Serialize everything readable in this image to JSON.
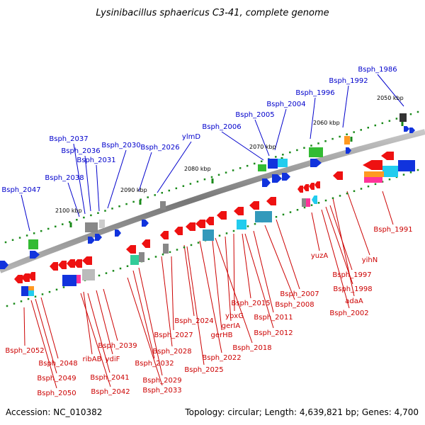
{
  "title": "Lysinibacillus sphaericus C3-41, complete genome",
  "footer": {
    "accession": "Accession: NC_010382",
    "topology": "Topology: circular; Length: 4,639,821 bp; Genes: 4,700"
  },
  "colors": {
    "label_top": "#0000cc",
    "label_bottom": "#cc0000",
    "backbone": "#8c8c8c",
    "tick": "#1a8a1a"
  },
  "scale_labels": [
    "2050 kbp",
    "2060 kbp",
    "2070 kbp",
    "2080 kbp",
    "2090 kbp",
    "2100 kbp"
  ],
  "genes_top": [
    "Bsph_1986",
    "Bsph_1992",
    "Bsph_1996",
    "Bsph_2004",
    "Bsph_2005",
    "Bsph_2006",
    "ylmD",
    "Bsph_2026",
    "Bsph_2030",
    "Bsph_2031",
    "Bsph_2036",
    "Bsph_2037",
    "Bsph_2038",
    "Bsph_2047"
  ],
  "genes_bottom": [
    "Bsph_1991",
    "yihN",
    "yuzA",
    "Bsph_1997",
    "Bsph_1998",
    "adaA",
    "Bsph_2002",
    "Bsph_2007",
    "Bsph_2008",
    "Bsph_2011",
    "Bsph_2012",
    "Bsph_2015",
    "ybxG",
    "gerIA",
    "gerHB",
    "Bsph_2018",
    "Bsph_2022",
    "Bsph_2024",
    "Bsph_2025",
    "Bsph_2027",
    "Bsph_2028",
    "Bsph_2029",
    "Bsph_2032",
    "Bsph_2033",
    "Bsph_2039",
    "ydiF",
    "ribAB",
    "Bsph_2041",
    "Bsph_2042",
    "Bsph_2048",
    "Bsph_2049",
    "Bsph_2050",
    "Bsph_2052"
  ]
}
